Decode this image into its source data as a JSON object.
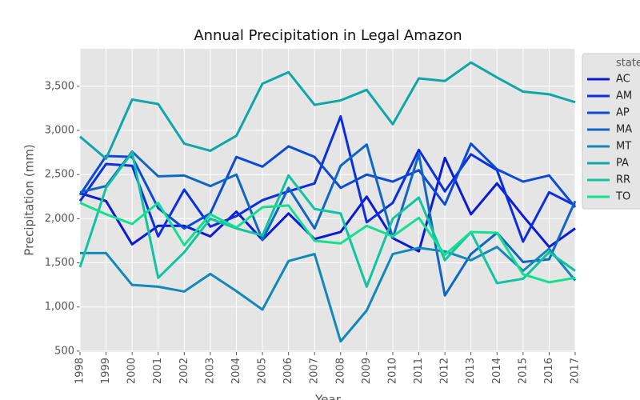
{
  "chart_data": {
    "type": "line",
    "title": "Annual Precipitation in Legal Amazon",
    "x_label": "Year",
    "y_label": "Precipitation (mm)",
    "legend_title": "state",
    "legend_position": "right",
    "grid": true,
    "x": [
      1998,
      1999,
      2000,
      2001,
      2002,
      2003,
      2004,
      2005,
      2006,
      2007,
      2008,
      2009,
      2010,
      2011,
      2012,
      2013,
      2014,
      2015,
      2016,
      2017
    ],
    "xlim": [
      1998,
      2017
    ],
    "xticks": [
      1998,
      1999,
      2000,
      2001,
      2002,
      2003,
      2004,
      2005,
      2006,
      2007,
      2008,
      2009,
      2010,
      2011,
      2012,
      2013,
      2014,
      2015,
      2016,
      2017
    ],
    "ylim": [
      490,
      3925
    ],
    "yticks": [
      {
        "value": 500,
        "label": "500"
      },
      {
        "value": 1000,
        "label": "1,000"
      },
      {
        "value": 1500,
        "label": "1,500"
      },
      {
        "value": 2000,
        "label": "2,000"
      },
      {
        "value": 2500,
        "label": "2,500"
      },
      {
        "value": 3000,
        "label": "3,000"
      },
      {
        "value": 3500,
        "label": "3,500"
      }
    ],
    "series": [
      {
        "name": "AC",
        "color": "#0a1ad6",
        "values": [
          2290,
          2200,
          1710,
          1920,
          1920,
          1800,
          2080,
          1760,
          2060,
          1770,
          1850,
          2250,
          1780,
          1630,
          2690,
          2050,
          2400,
          2030,
          1680,
          1890
        ]
      },
      {
        "name": "AM",
        "color": "#0a2ee0",
        "values": [
          2200,
          2620,
          2600,
          1800,
          2330,
          1910,
          2030,
          2210,
          2310,
          2400,
          3160,
          1960,
          2180,
          2780,
          2310,
          2730,
          2550,
          1740,
          2300,
          2150
        ]
      },
      {
        "name": "AP",
        "color": "#0c4ad6",
        "values": [
          2270,
          2710,
          2700,
          2120,
          1890,
          2060,
          2700,
          2590,
          2820,
          2700,
          2350,
          2500,
          2420,
          2550,
          2160,
          2850,
          2560,
          2420,
          2490,
          2130
        ]
      },
      {
        "name": "MA",
        "color": "#1066c4",
        "values": [
          2300,
          2370,
          2760,
          2480,
          2490,
          2370,
          2500,
          1760,
          2350,
          1890,
          2600,
          2840,
          1780,
          2730,
          1130,
          1600,
          1840,
          1510,
          1540,
          2200
        ]
      },
      {
        "name": "MT",
        "color": "#1288b8",
        "values": [
          1610,
          1610,
          1250,
          1230,
          1175,
          1375,
          1180,
          970,
          1520,
          1600,
          610,
          960,
          1600,
          1670,
          1630,
          1530,
          1680,
          1410,
          1660,
          1300
        ]
      },
      {
        "name": "PA",
        "color": "#0ea6a8",
        "values": [
          2930,
          2680,
          3350,
          3300,
          2850,
          2770,
          2940,
          3530,
          3660,
          3290,
          3340,
          3460,
          3070,
          3590,
          3560,
          3770,
          3600,
          3440,
          3410,
          3320
        ]
      },
      {
        "name": "RR",
        "color": "#10c4a0",
        "values": [
          1450,
          2350,
          2750,
          1330,
          1620,
          2000,
          1890,
          1810,
          2490,
          2110,
          2060,
          1230,
          2000,
          2240,
          1530,
          1850,
          1270,
          1320,
          1620,
          1410
        ]
      },
      {
        "name": "TO",
        "color": "#12e090",
        "values": [
          2180,
          2050,
          1940,
          2180,
          1700,
          2050,
          1900,
          2130,
          2150,
          1750,
          1720,
          1920,
          1800,
          2010,
          1590,
          1850,
          1840,
          1370,
          1280,
          1330
        ]
      }
    ]
  }
}
